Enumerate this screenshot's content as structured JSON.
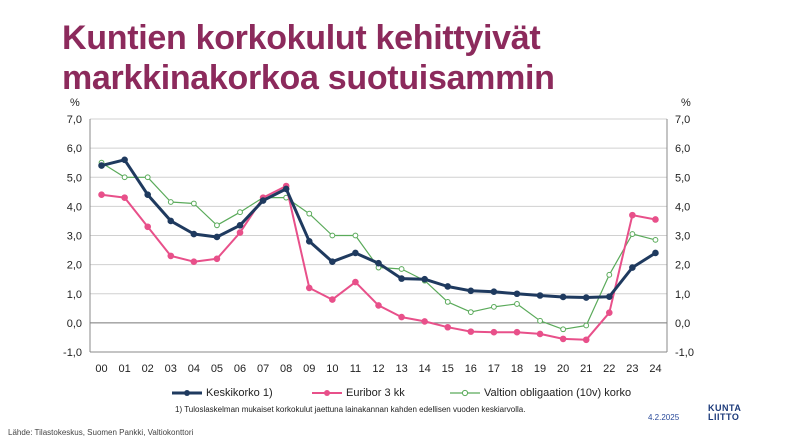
{
  "title": {
    "line1": "Kuntien korkokulut kehittyivät",
    "line2": "markkinakorkoa suotuisammin"
  },
  "legend": {
    "series1": "Keskikorko 1)",
    "series2": "Euribor 3 kk",
    "series3": "Valtion obligaation (10v) korko"
  },
  "footnote": "1) Tuloslaskelman mukaiset korkokulut jaettuna lainakannan kahden edellisen vuoden keskiarvolla.",
  "source": "Lähde: Tilastokeskus, Suomen Pankki, Valtiokonttori",
  "date": "4.2.2025",
  "logo": {
    "line1": "KUNTA",
    "line2": "LIITTO"
  },
  "colors": {
    "title": "#8c2a5c",
    "series1": "#1f3a5f",
    "series2": "#e8508a",
    "series3": "#5aaa5a"
  },
  "chart_data": {
    "type": "line",
    "unit_left": "%",
    "unit_right": "%",
    "categories": [
      "00",
      "01",
      "02",
      "03",
      "04",
      "05",
      "06",
      "07",
      "08",
      "09",
      "10",
      "11",
      "12",
      "13",
      "14",
      "15",
      "16",
      "17",
      "18",
      "19",
      "20",
      "21",
      "22",
      "23",
      "24"
    ],
    "ylim": [
      -1.0,
      7.0
    ],
    "yticks": [
      "-1,0",
      "0,0",
      "1,0",
      "2,0",
      "3,0",
      "4,0",
      "5,0",
      "6,0",
      "7,0"
    ],
    "grid": true,
    "legend_position": "bottom",
    "series": [
      {
        "name": "Keskikorko 1)",
        "color": "#1f3a5f",
        "marker": "filled-circle",
        "values": [
          5.4,
          5.6,
          4.4,
          3.5,
          3.05,
          2.95,
          3.35,
          4.2,
          4.6,
          2.8,
          2.1,
          2.4,
          2.05,
          1.52,
          1.5,
          1.25,
          1.1,
          1.07,
          1.0,
          0.94,
          0.89,
          0.87,
          0.9,
          1.9,
          2.4
        ]
      },
      {
        "name": "Euribor 3 kk",
        "color": "#e8508a",
        "marker": "filled-circle",
        "values": [
          4.4,
          4.3,
          3.3,
          2.3,
          2.1,
          2.2,
          3.1,
          4.3,
          4.7,
          1.2,
          0.8,
          1.4,
          0.6,
          0.2,
          0.05,
          -0.15,
          -0.3,
          -0.32,
          -0.32,
          -0.38,
          -0.55,
          -0.58,
          0.35,
          3.7,
          3.55
        ]
      },
      {
        "name": "Valtion obligaation (10v) korko",
        "color": "#5aaa5a",
        "marker": "open-circle",
        "values": [
          5.5,
          5.0,
          5.0,
          4.15,
          4.1,
          3.35,
          3.8,
          4.3,
          4.3,
          3.75,
          3.0,
          3.0,
          1.9,
          1.85,
          1.45,
          0.72,
          0.37,
          0.55,
          0.65,
          0.07,
          -0.22,
          -0.09,
          1.65,
          3.05,
          2.85
        ]
      }
    ]
  }
}
